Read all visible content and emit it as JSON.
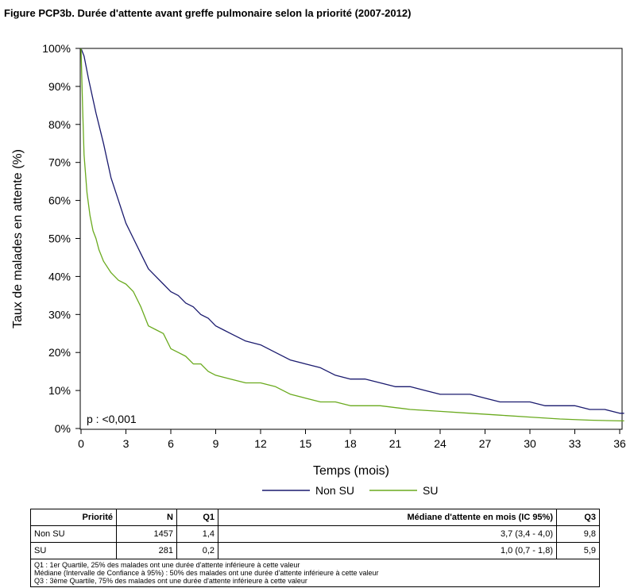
{
  "title": "Figure PCP3b. Durée d'attente avant greffe pulmonaire selon la priorité (2007-2012)",
  "colors": {
    "non_su": "#1a1a6e",
    "su": "#6aaa1e"
  },
  "chart_data": {
    "type": "line",
    "xlabel": "Temps (mois)",
    "ylabel": "Taux de malades en attente (%)",
    "xlim": [
      0,
      36.5
    ],
    "ylim": [
      0,
      100
    ],
    "x_ticks": [
      "0",
      "3",
      "6",
      "9",
      "12",
      "15",
      "18",
      "21",
      "24",
      "27",
      "30",
      "33",
      "36"
    ],
    "x_tick_values": [
      0,
      3,
      6,
      9,
      12,
      15,
      18,
      21,
      24,
      27,
      30,
      33,
      36
    ],
    "y_ticks": [
      "0%",
      "10%",
      "20%",
      "30%",
      "40%",
      "50%",
      "60%",
      "70%",
      "80%",
      "90%",
      "100%"
    ],
    "y_tick_values": [
      0,
      10,
      20,
      30,
      40,
      50,
      60,
      70,
      80,
      90,
      100
    ],
    "annotation": "p : <0,001",
    "legend_position": "bottom",
    "series": [
      {
        "name": "Non SU",
        "color": "#1a1a6e",
        "x": [
          0,
          0.2,
          0.5,
          1,
          1.5,
          2,
          2.5,
          3,
          3.5,
          4,
          4.5,
          5,
          5.5,
          6,
          6.5,
          7,
          7.5,
          8,
          8.5,
          9,
          9.5,
          10,
          11,
          12,
          13,
          14,
          15,
          16,
          17,
          18,
          19,
          20,
          21,
          22,
          23,
          24,
          25,
          26,
          27,
          28,
          29,
          30,
          31,
          32,
          33,
          34,
          35,
          36,
          36.5
        ],
        "y": [
          100,
          98,
          92,
          83,
          75,
          66,
          60,
          54,
          50,
          46,
          42,
          40,
          38,
          36,
          35,
          33,
          32,
          30,
          29,
          27,
          26,
          25,
          23,
          22,
          20,
          18,
          17,
          16,
          14,
          13,
          13,
          12,
          11,
          11,
          10,
          9,
          9,
          9,
          8,
          7,
          7,
          7,
          6,
          6,
          6,
          5,
          5,
          4,
          4
        ]
      },
      {
        "name": "SU",
        "color": "#6aaa1e",
        "x": [
          0,
          0.1,
          0.2,
          0.4,
          0.6,
          0.8,
          1,
          1.2,
          1.5,
          2,
          2.5,
          3,
          3.5,
          4,
          4.5,
          5,
          5.5,
          6,
          6.5,
          7,
          7.5,
          8,
          8.5,
          9,
          10,
          11,
          12,
          13,
          14,
          15,
          16,
          17,
          18,
          20,
          22,
          24,
          26,
          28,
          30,
          32,
          34,
          36,
          36.5
        ],
        "y": [
          100,
          85,
          72,
          62,
          56,
          52,
          50,
          47,
          44,
          41,
          39,
          38,
          36,
          32,
          27,
          26,
          25,
          21,
          20,
          19,
          17,
          17,
          15,
          14,
          13,
          12,
          12,
          11,
          9,
          8,
          7,
          7,
          6,
          6,
          5,
          4.5,
          4,
          3.5,
          3,
          2.5,
          2.2,
          2,
          2
        ]
      }
    ]
  },
  "table": {
    "headers": [
      "Priorité",
      "N",
      "Q1",
      "Médiane d'attente en mois (IC 95%)",
      "Q3"
    ],
    "rows": [
      [
        "Non SU",
        "1457",
        "1,4",
        "3,7 (3,4 - 4,0)",
        "9,8"
      ],
      [
        "SU",
        "281",
        "0,2",
        "1,0 (0,7 - 1,8)",
        "5,9"
      ]
    ],
    "notes": [
      "Q1 : 1er Quartile, 25% des malades ont une durée d'attente inférieure à cette valeur",
      "Médiane (Intervalle de Confiance à 95%) : 50% des malades ont une durée d'attente inférieure à cette valeur",
      "Q3 : 3ème Quartile, 75% des malades ont une durée d'attente inférieure à cette valeur"
    ]
  }
}
